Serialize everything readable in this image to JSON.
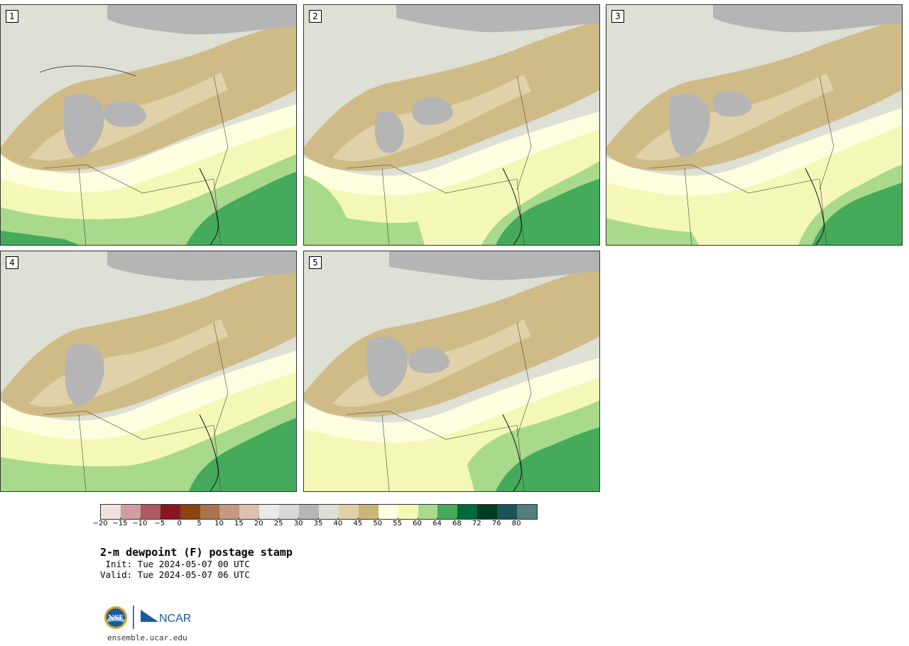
{
  "panels": [
    {
      "label": "1"
    },
    {
      "label": "2"
    },
    {
      "label": "3"
    },
    {
      "label": "4"
    },
    {
      "label": "5"
    }
  ],
  "colorbar": {
    "colors": [
      "#f0e0e0",
      "#d09ea2",
      "#ad5a5f",
      "#8a1520",
      "#8a4412",
      "#a8734f",
      "#c39a80",
      "#dcbfae",
      "#e9e9e9",
      "#d8d8d8",
      "#b5b5b5",
      "#dedfd5",
      "#e0d1a8",
      "#ccb578",
      "#fefee0",
      "#f4f8b6",
      "#a9d98a",
      "#45aa5b",
      "#00693c",
      "#003d22",
      "#1d5258",
      "#517f82"
    ],
    "tick_labels": [
      "−20",
      "−15",
      "−10",
      "−5",
      "0",
      "5",
      "10",
      "15",
      "20",
      "25",
      "30",
      "35",
      "40",
      "45",
      "50",
      "55",
      "60",
      "64",
      "68",
      "72",
      "76",
      "80"
    ]
  },
  "title": "2-m dewpoint (F) postage stamp",
  "init": " Init: Tue 2024-05-07 00 UTC",
  "valid": "Valid: Tue 2024-05-07 06 UTC",
  "logo": {
    "nsf_text": "NSF",
    "ncar_text": "NCAR"
  },
  "url": "ensemble.ucar.edu"
}
